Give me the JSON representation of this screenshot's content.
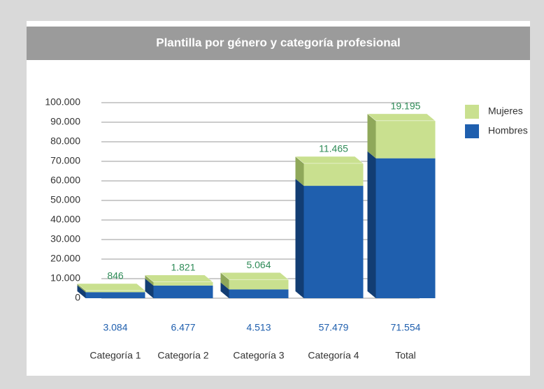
{
  "chart_data": {
    "type": "stacked_bar",
    "title": "Plantilla por género y categoría profesional",
    "categories": [
      "Categoría 1",
      "Categoría 2",
      "Categoría 3",
      "Categoría 4",
      "Total"
    ],
    "series": [
      {
        "name": "Hombres",
        "color": "#1f5fae",
        "values": [
          3084,
          6477,
          4513,
          57479,
          71554
        ],
        "value_labels": [
          "3.084",
          "6.477",
          "4.513",
          "57.479",
          "71.554"
        ]
      },
      {
        "name": "Mujeres",
        "color": "#c9e08f",
        "values": [
          846,
          1821,
          5064,
          11465,
          19195
        ],
        "value_labels": [
          "846",
          "1.821",
          "5.064",
          "11.465",
          "19.195"
        ]
      }
    ],
    "ylim": [
      0,
      100000
    ],
    "yticks": [
      0,
      {
        "value": 10000,
        "label": "10.000"
      },
      {
        "value": 20000,
        "label": "20.000"
      },
      {
        "value": 30000,
        "label": "30.000"
      },
      {
        "value": 40000,
        "label": "40.000"
      },
      {
        "value": 50000,
        "label": "50.000"
      },
      {
        "value": 60000,
        "label": "60.000"
      },
      {
        "value": 70000,
        "label": "70.000"
      },
      {
        "value": 80000,
        "label": "80.000"
      },
      {
        "value": 90000,
        "label": "90.000"
      },
      {
        "value": 100000,
        "label": "100.000"
      }
    ],
    "grid": true,
    "legend": "right"
  }
}
